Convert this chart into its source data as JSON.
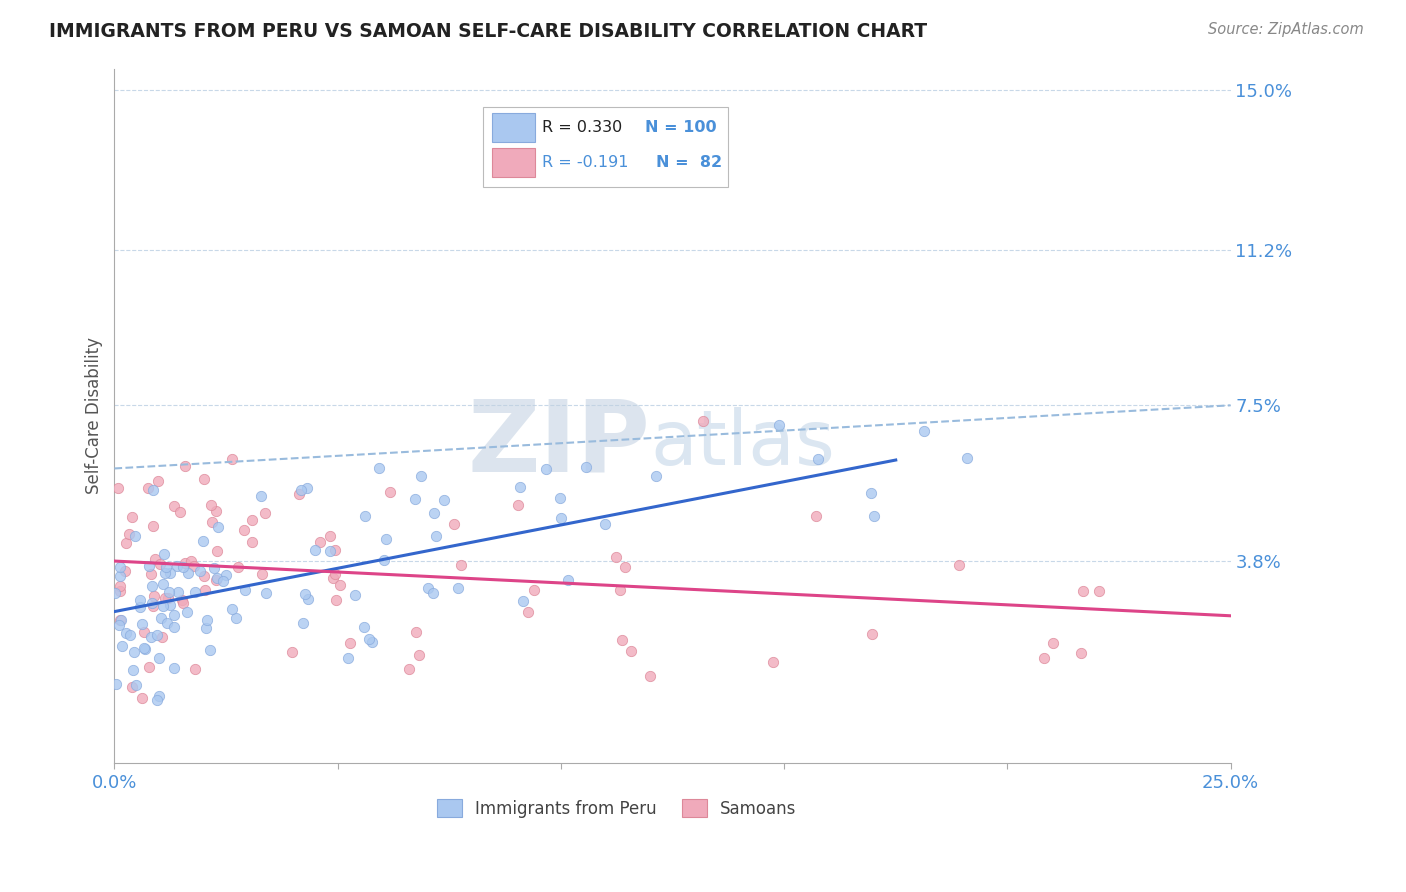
{
  "title": "IMMIGRANTS FROM PERU VS SAMOAN SELF-CARE DISABILITY CORRELATION CHART",
  "source": "Source: ZipAtlas.com",
  "ylabel": "Self-Care Disability",
  "xlim": [
    0.0,
    0.25
  ],
  "ylim": [
    -0.01,
    0.155
  ],
  "yticks_right": [
    0.038,
    0.075,
    0.112,
    0.15
  ],
  "ytick_labels_right": [
    "3.8%",
    "7.5%",
    "11.2%",
    "15.0%"
  ],
  "background_color": "#ffffff",
  "grid_color": "#c8d8e8",
  "title_color": "#222222",
  "axis_label_color": "#4a90d9",
  "peru_color": "#aac8f0",
  "peru_edge_color": "#88aadd",
  "samoa_color": "#f0aabb",
  "samoa_edge_color": "#dd8899",
  "trendline_peru_color": "#3366cc",
  "trendline_samoa_color": "#dd4488",
  "dashed_line_color": "#99bbdd",
  "watermark_zip": "ZIP",
  "watermark_atlas": "atlas",
  "peru_trend_x": [
    0.0,
    0.175
  ],
  "peru_trend_y": [
    0.026,
    0.062
  ],
  "samoa_trend_x": [
    0.0,
    0.25
  ],
  "samoa_trend_y": [
    0.038,
    0.025
  ],
  "dashed_trend_x": [
    0.0,
    0.25
  ],
  "dashed_trend_y": [
    0.06,
    0.075
  ]
}
